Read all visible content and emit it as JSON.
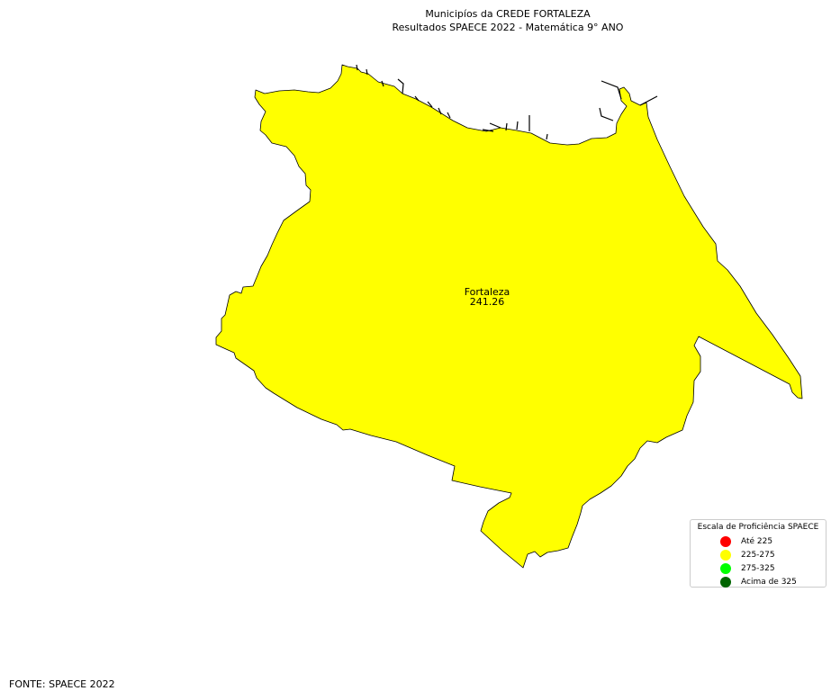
{
  "title": {
    "line1": "Municipíos da CREDE FORTALEZA",
    "line2": "Resultados SPAECE 2022 - Matemática 9° ANO"
  },
  "municipality": {
    "name": "Fortaleza",
    "value": "241.26",
    "fill": "#ffff00"
  },
  "legend": {
    "title": "Escala de Proficiência SPAECE",
    "items": [
      {
        "label": "Até 225",
        "color": "#ff0000"
      },
      {
        "label": "225-275",
        "color": "#ffff00"
      },
      {
        "label": "275-325",
        "color": "#00ff00"
      },
      {
        "label": "Acima de 325",
        "color": "#006400"
      }
    ]
  },
  "source": "FONTE: SPAECE 2022"
}
